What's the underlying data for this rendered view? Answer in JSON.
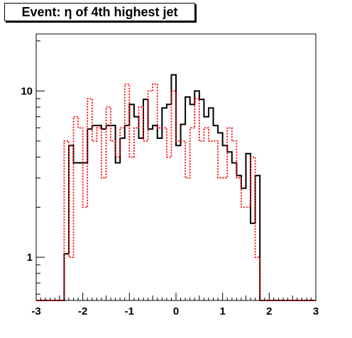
{
  "chart_data": {
    "type": "histogram",
    "title": "Event: η of 4th highest jet",
    "xlabel": "",
    "ylabel": "",
    "xlim": [
      -3,
      3
    ],
    "ylim": [
      0.55,
      22
    ],
    "yscale": "log",
    "grid": false,
    "legend": "none",
    "bin_edges": [
      -3.0,
      -2.9,
      -2.8,
      -2.7,
      -2.6,
      -2.5,
      -2.4,
      -2.3,
      -2.2,
      -2.1,
      -2.0,
      -1.9,
      -1.8,
      -1.7,
      -1.6,
      -1.5,
      -1.4,
      -1.3,
      -1.2,
      -1.1,
      -1.0,
      -0.9,
      -0.8,
      -0.7,
      -0.6,
      -0.5,
      -0.4,
      -0.3,
      -0.2,
      -0.1,
      0.0,
      0.1,
      0.2,
      0.3,
      0.4,
      0.5,
      0.6,
      0.7,
      0.8,
      0.9,
      1.0,
      1.1,
      1.2,
      1.3,
      1.4,
      1.5,
      1.6,
      1.7,
      1.8,
      1.9,
      2.0,
      2.1,
      2.2,
      2.3,
      2.4,
      2.5,
      2.6,
      2.7,
      2.8,
      2.9,
      3.0
    ],
    "x_ticks": [
      -3,
      -2,
      -1,
      0,
      1,
      2,
      3
    ],
    "x_tick_labels": [
      "-3",
      "-2",
      "-1",
      "0",
      "1",
      "2",
      "3"
    ],
    "y_ticks": [
      1,
      10
    ],
    "y_tick_labels": [
      "1",
      "10"
    ],
    "series": [
      {
        "style": "solid",
        "color": "#000000",
        "values": [
          0,
          0,
          0,
          0,
          0,
          0,
          1.05,
          4.7,
          3.7,
          3.7,
          3.7,
          5.9,
          6.2,
          6.2,
          5.9,
          6.2,
          6.2,
          3.7,
          5.2,
          6.2,
          8.3,
          7.0,
          5.2,
          8.9,
          5.9,
          6.2,
          5.2,
          7.9,
          8.3,
          12.5,
          4.7,
          6.3,
          9.2,
          8.3,
          10.0,
          8.9,
          7.0,
          7.9,
          6.2,
          5.6,
          4.7,
          4.3,
          3.7,
          3.1,
          2.6,
          4.2,
          1.6,
          3.1,
          0,
          0,
          0,
          0,
          0,
          0,
          0,
          0,
          0,
          0,
          0,
          0
        ]
      },
      {
        "style": "dotted",
        "color": "#ff0000",
        "values": [
          0,
          0,
          0,
          0,
          0,
          0,
          5.0,
          1.0,
          7.0,
          6.0,
          2.0,
          9.0,
          5.0,
          6.0,
          3.0,
          8.0,
          5.0,
          4.0,
          6.0,
          11.0,
          4.0,
          6.0,
          8.0,
          5.0,
          10.0,
          11.0,
          6.0,
          6.0,
          4.0,
          10.0,
          5.0,
          5.0,
          3.0,
          6.0,
          9.0,
          5.0,
          6.0,
          5.0,
          5.0,
          3.0,
          3.0,
          6.0,
          5.0,
          3.0,
          2.0,
          2.0,
          4.0,
          1.0,
          0,
          0,
          0,
          0,
          0,
          0,
          0,
          0,
          0,
          0,
          0,
          0
        ]
      }
    ]
  }
}
